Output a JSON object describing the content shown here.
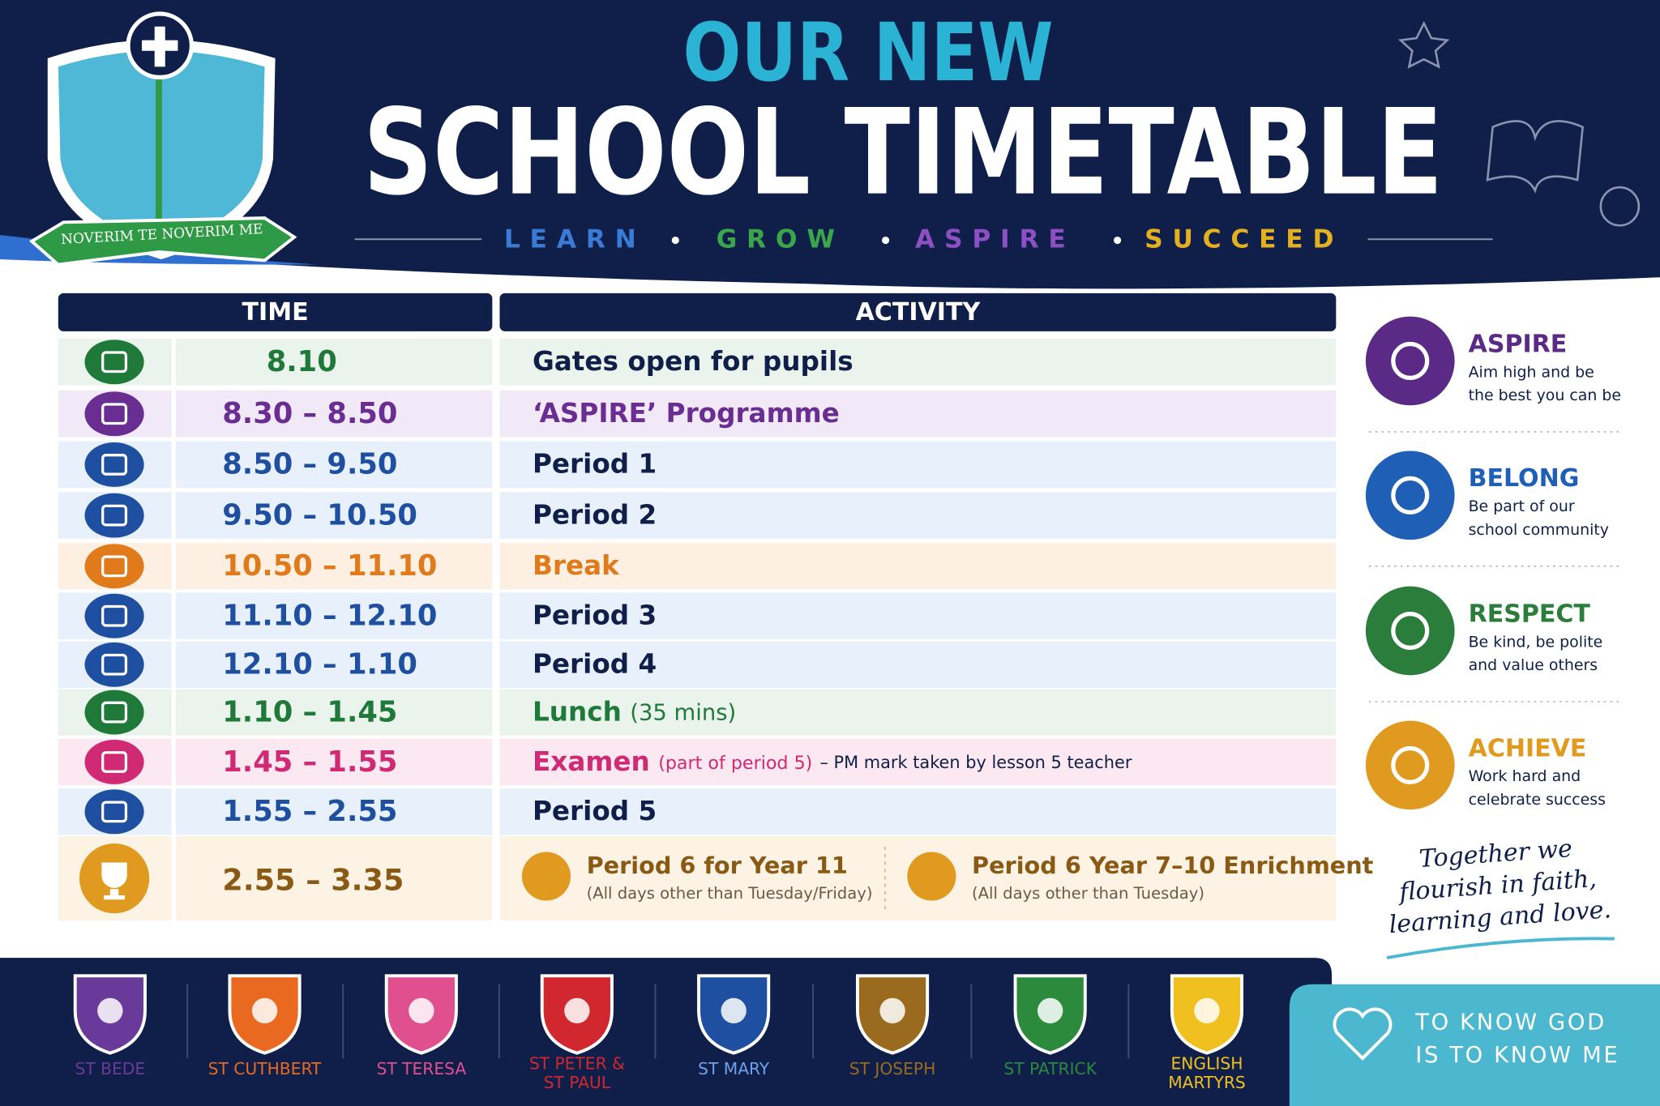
{
  "header": {
    "crest_motto": "NOVERIM TE NOVERIM ME",
    "title_top": "OUR NEW",
    "title_main": "SCHOOL TIMETABLE",
    "motto": [
      "LEARN",
      "GROW",
      "ASPIRE",
      "SUCCEED"
    ]
  },
  "table": {
    "columns": [
      "TIME",
      "ACTIVITY"
    ],
    "rows": [
      {
        "time": "8.10",
        "activity": "Gates open for pupils"
      },
      {
        "time": "8.30 – 8.50",
        "activity": "‘ASPIRE’ Programme"
      },
      {
        "time": "8.50 – 9.50",
        "activity": "Period 1"
      },
      {
        "time": "9.50 – 10.50",
        "activity": "Period 2"
      },
      {
        "time": "10.50 – 11.10",
        "activity": "Break"
      },
      {
        "time": "11.10 – 12.10",
        "activity": "Period 3"
      },
      {
        "time": "12.10 – 1.10",
        "activity": "Period 4"
      },
      {
        "time": "1.10 – 1.45",
        "activity": "Lunch",
        "note": "(35 mins)"
      },
      {
        "time": "1.45 – 1.55",
        "activity": "Examen",
        "note": "(part of period 5)",
        "detail": "– PM mark taken by lesson 5 teacher"
      },
      {
        "time": "1.55 – 2.55",
        "activity": "Period 5"
      }
    ],
    "final_row": {
      "time": "2.55 – 3.35",
      "options": [
        {
          "title": "Period 6 for Year 11",
          "note": "(All days other than Tuesday/Friday)"
        },
        {
          "title": "Period 6 Year 7–10 Enrichment",
          "note": "(All days other than Tuesday)"
        }
      ]
    }
  },
  "values": [
    {
      "title": "ASPIRE",
      "text": [
        "Aim high and be",
        "the best you can be"
      ]
    },
    {
      "title": "BELONG",
      "text": [
        "Be part of our",
        "school community"
      ]
    },
    {
      "title": "RESPECT",
      "text": [
        "Be kind, be polite",
        "and value others"
      ]
    },
    {
      "title": "ACHIEVE",
      "text": [
        "Work hard and",
        "celebrate success"
      ]
    }
  ],
  "slogan": [
    "Together we",
    "flourish in faith,",
    "learning and love."
  ],
  "houses": [
    [
      "ST BEDE"
    ],
    [
      "ST CUTHBERT"
    ],
    [
      "ST TERESA"
    ],
    [
      "ST PETER &",
      "ST PAUL"
    ],
    [
      "ST MARY"
    ],
    [
      "ST JOSEPH"
    ],
    [
      "ST PATRICK"
    ],
    [
      "ENGLISH",
      "MARTYRS"
    ]
  ],
  "footer": [
    "TO KNOW GOD",
    "IS TO KNOW ME"
  ]
}
